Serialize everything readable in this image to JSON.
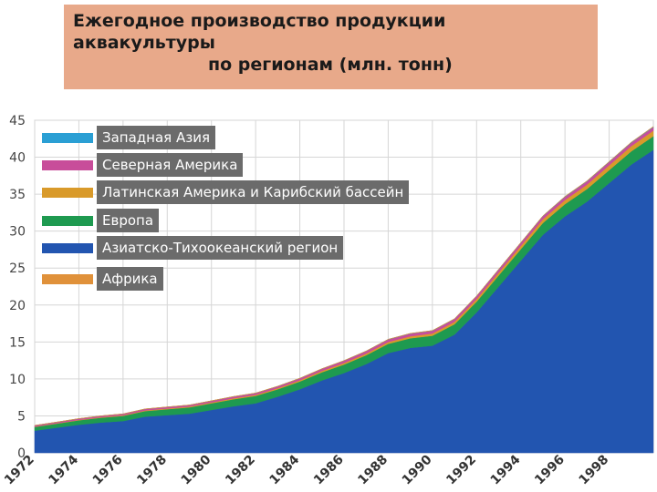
{
  "title": {
    "line1": "Ежегодное производство продукции",
    "line2": "аквакультуры",
    "line3": "по регионам (млн. тонн)"
  },
  "chart_data": {
    "type": "area",
    "stacked": true,
    "title": "Ежегодное производство продукции аквакультуры по регионам (млн. тонн)",
    "ylim": [
      0,
      45
    ],
    "yticks": [
      0,
      5,
      10,
      15,
      20,
      25,
      30,
      35,
      40,
      45
    ],
    "xlim": [
      1972,
      2000
    ],
    "xticks": [
      1972,
      1974,
      1976,
      1978,
      1980,
      1982,
      1984,
      1986,
      1988,
      1990,
      1992,
      1994,
      1996,
      1998
    ],
    "grid": true,
    "legend_position": "top-left",
    "x": [
      1972,
      1973,
      1974,
      1975,
      1976,
      1977,
      1978,
      1979,
      1980,
      1981,
      1982,
      1983,
      1984,
      1985,
      1986,
      1987,
      1988,
      1989,
      1990,
      1991,
      1992,
      1993,
      1994,
      1995,
      1996,
      1997,
      1998,
      1999,
      2000
    ],
    "series": [
      {
        "name": "Азиатско-Тихоокеанский регион",
        "color": "#2255b0",
        "values": [
          3.0,
          3.4,
          3.8,
          4.1,
          4.3,
          4.9,
          5.1,
          5.3,
          5.8,
          6.3,
          6.7,
          7.6,
          8.6,
          9.8,
          10.8,
          12.0,
          13.5,
          14.2,
          14.5,
          16.0,
          19.0,
          22.5,
          26.0,
          29.5,
          32.0,
          34.0,
          36.5,
          39.0,
          41.0
        ]
      },
      {
        "name": "Европа",
        "color": "#1e9a50",
        "values": [
          0.5,
          0.55,
          0.6,
          0.65,
          0.7,
          0.75,
          0.8,
          0.85,
          0.9,
          0.95,
          1.0,
          1.0,
          1.05,
          1.1,
          1.15,
          1.2,
          1.25,
          1.3,
          1.35,
          1.4,
          1.45,
          1.5,
          1.55,
          1.6,
          1.65,
          1.7,
          1.75,
          1.8,
          1.85
        ]
      },
      {
        "name": "Латинская Америка и Карибский бассейн",
        "color": "#d99a2a",
        "values": [
          0.05,
          0.05,
          0.06,
          0.07,
          0.08,
          0.09,
          0.1,
          0.11,
          0.12,
          0.13,
          0.14,
          0.15,
          0.17,
          0.19,
          0.21,
          0.23,
          0.25,
          0.27,
          0.3,
          0.33,
          0.36,
          0.4,
          0.45,
          0.5,
          0.55,
          0.6,
          0.65,
          0.7,
          0.75
        ]
      },
      {
        "name": "Северная Америка",
        "color": "#c84d9a",
        "values": [
          0.15,
          0.15,
          0.16,
          0.17,
          0.18,
          0.19,
          0.2,
          0.2,
          0.21,
          0.22,
          0.23,
          0.24,
          0.25,
          0.27,
          0.3,
          0.32,
          0.33,
          0.35,
          0.36,
          0.37,
          0.38,
          0.39,
          0.4,
          0.41,
          0.42,
          0.43,
          0.44,
          0.45,
          0.46
        ]
      },
      {
        "name": "Западная Азия",
        "color": "#2a9fd4",
        "values": [
          0.01,
          0.01,
          0.01,
          0.01,
          0.01,
          0.01,
          0.01,
          0.01,
          0.01,
          0.02,
          0.02,
          0.02,
          0.02,
          0.02,
          0.02,
          0.02,
          0.03,
          0.03,
          0.03,
          0.03,
          0.03,
          0.04,
          0.04,
          0.04,
          0.05,
          0.05,
          0.05,
          0.06,
          0.06
        ]
      },
      {
        "name": "Африка",
        "color": "#e0913a",
        "values": [
          0.01,
          0.01,
          0.01,
          0.01,
          0.01,
          0.01,
          0.01,
          0.01,
          0.01,
          0.01,
          0.01,
          0.01,
          0.01,
          0.01,
          0.01,
          0.01,
          0.01,
          0.02,
          0.02,
          0.02,
          0.02,
          0.02,
          0.02,
          0.02,
          0.03,
          0.03,
          0.03,
          0.03,
          0.04
        ]
      }
    ],
    "legend": [
      {
        "label": "Западная Азия",
        "color": "#2a9fd4"
      },
      {
        "label": "Северная Америка",
        "color": "#c84d9a"
      },
      {
        "label": "Латинская Америка и Карибский бассейн",
        "color": "#d99a2a"
      },
      {
        "label": "Европа",
        "color": "#1e9a50"
      },
      {
        "label": "Азиатско-Тихоокеанский регион",
        "color": "#2255b0"
      },
      {
        "label": "Африка",
        "color": "#e0913a"
      }
    ]
  }
}
